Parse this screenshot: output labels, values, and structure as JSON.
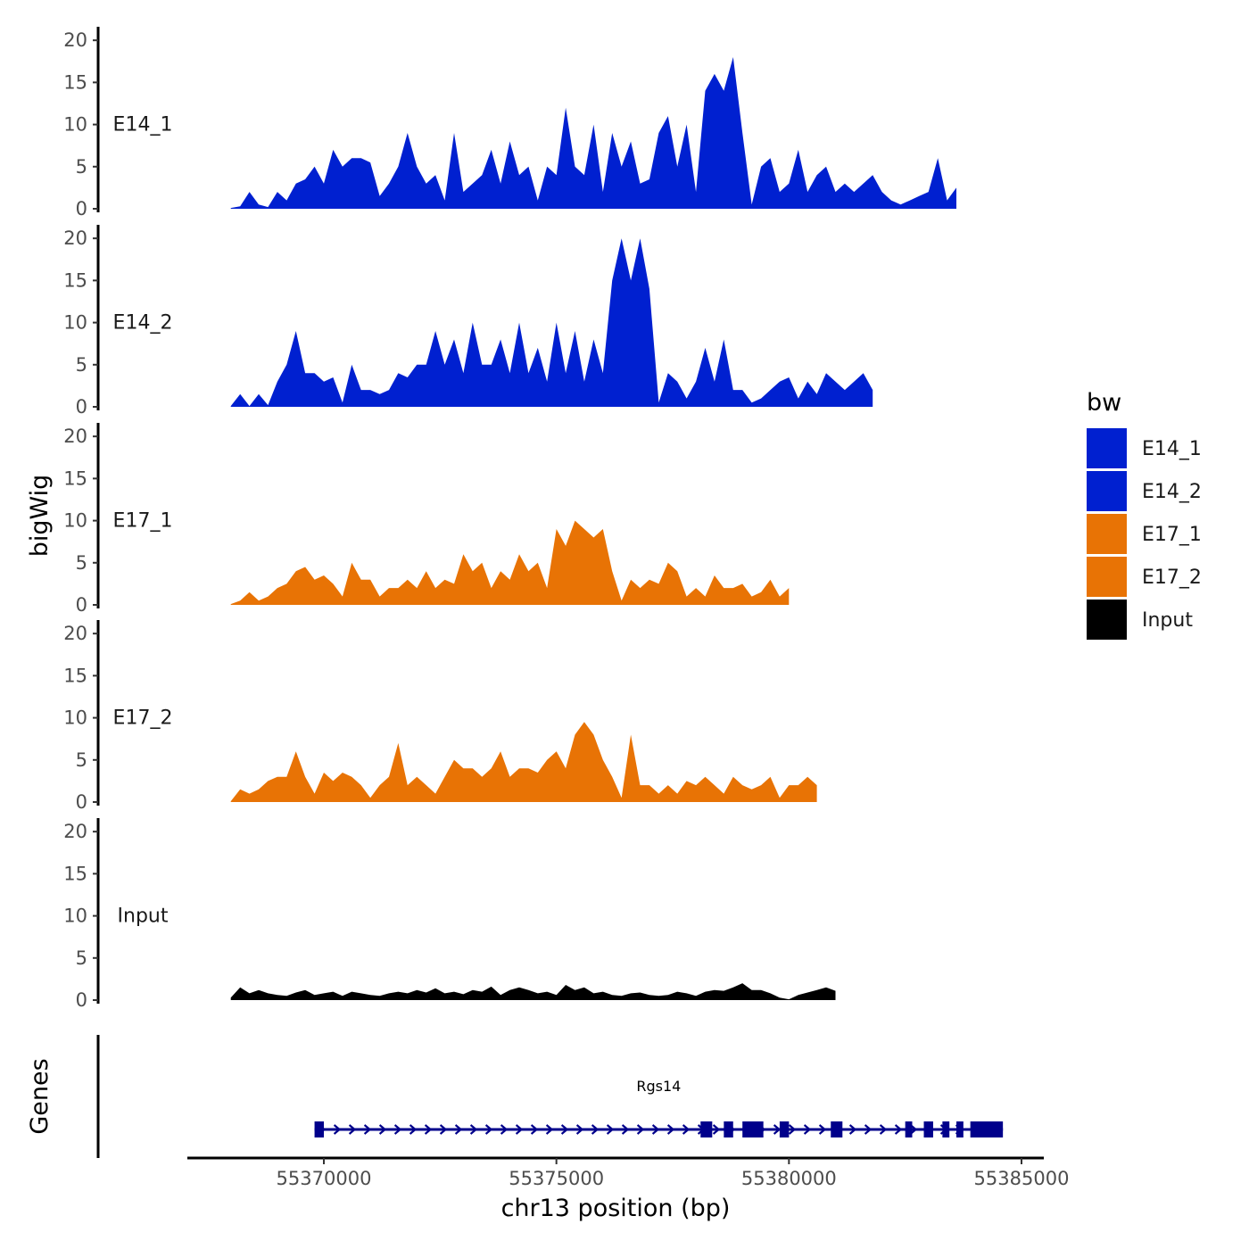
{
  "chart_data": {
    "type": "area",
    "ylabel": "bigWig",
    "genes_label": "Genes",
    "xlabel": "chr13 position (bp)",
    "x_ticks": [
      55370000,
      55375000,
      55380000,
      55385000
    ],
    "x_tick_labels": [
      "55370000",
      "55375000",
      "55380000",
      "55385000"
    ],
    "xlim": [
      55367400,
      55385000
    ],
    "ylim": [
      0,
      21.5
    ],
    "y_ticks": [
      0,
      5,
      10,
      15,
      20
    ],
    "y_tick_labels": [
      "0",
      "5",
      "10",
      "15",
      "20"
    ],
    "legend": {
      "title": "bw",
      "entries": [
        {
          "label": "E14_1",
          "color": "#0020D0"
        },
        {
          "label": "E14_2",
          "color": "#0020D0"
        },
        {
          "label": "E17_1",
          "color": "#E87305"
        },
        {
          "label": "E17_2",
          "color": "#E87305"
        },
        {
          "label": "Input",
          "color": "#000000"
        }
      ]
    },
    "series": [
      {
        "name": "E14_1",
        "color": "#0020D0",
        "x_start": 55368000,
        "x_step": 200,
        "values": [
          0.1,
          0.3,
          2,
          0.5,
          0.2,
          2,
          1,
          3,
          3.5,
          5,
          3,
          7,
          5,
          6,
          6,
          5.5,
          1.5,
          3,
          5,
          9,
          5,
          3,
          4,
          1,
          9,
          2,
          3,
          4,
          7,
          3,
          8,
          4,
          5,
          1,
          5,
          4,
          12,
          5,
          4,
          10,
          2,
          9,
          5,
          8,
          3,
          3.5,
          9,
          11,
          5,
          10,
          2,
          14,
          16,
          14,
          18,
          9,
          0.5,
          5,
          6,
          2,
          3,
          7,
          2,
          4,
          5,
          2,
          3,
          2,
          3,
          4,
          2,
          1,
          0.5,
          1,
          1.5,
          2,
          6,
          1,
          2.5
        ]
      },
      {
        "name": "E14_2",
        "color": "#0020D0",
        "x_start": 55368000,
        "x_step": 200,
        "values": [
          0.1,
          1.5,
          0.1,
          1.5,
          0.2,
          3,
          5,
          9,
          4,
          4,
          3,
          3.5,
          0.5,
          5,
          2,
          2,
          1.5,
          2,
          4,
          3.5,
          5,
          5,
          9,
          5,
          8,
          4,
          10,
          5,
          5,
          8,
          4,
          10,
          4,
          7,
          3,
          10,
          4,
          9,
          3,
          8,
          4,
          15,
          20,
          15,
          20,
          14,
          0.5,
          4,
          3,
          1,
          3,
          7,
          3,
          8,
          2,
          2,
          0.5,
          1,
          2,
          3,
          3.5,
          1,
          3,
          1.5,
          4,
          3,
          2,
          3,
          4,
          2
        ]
      },
      {
        "name": "E17_1",
        "color": "#E87305",
        "x_start": 55368000,
        "x_step": 200,
        "values": [
          0.1,
          0.5,
          1.5,
          0.5,
          1,
          2,
          2.5,
          4,
          4.5,
          3,
          3.5,
          2.5,
          1,
          5,
          3,
          3,
          1,
          2,
          2,
          3,
          2,
          4,
          2,
          3,
          2.5,
          6,
          4,
          5,
          2,
          4,
          3,
          6,
          4,
          5,
          2,
          9,
          7,
          10,
          9,
          8,
          9,
          4,
          0.5,
          3,
          2,
          3,
          2.5,
          5,
          4,
          1,
          2,
          1,
          3.5,
          2,
          2,
          2.5,
          1,
          1.5,
          3,
          1,
          2
        ]
      },
      {
        "name": "E17_2",
        "color": "#E87305",
        "x_start": 55368000,
        "x_step": 200,
        "values": [
          0.1,
          1.5,
          1,
          1.5,
          2.5,
          3,
          3,
          6,
          3,
          1,
          3.5,
          2.5,
          3.5,
          3,
          2,
          0.5,
          2,
          3,
          7,
          2,
          3,
          2,
          1,
          3,
          5,
          4,
          4,
          3,
          4,
          6,
          3,
          4,
          4,
          3.5,
          5,
          6,
          4,
          8,
          9.5,
          8,
          5,
          3,
          0.5,
          8,
          2,
          2,
          1,
          2,
          1,
          2.5,
          2,
          3,
          2,
          1,
          3,
          2,
          1.5,
          2,
          3,
          0.5,
          2,
          2,
          3,
          2
        ]
      },
      {
        "name": "Input",
        "color": "#000000",
        "x_start": 55368000,
        "x_step": 200,
        "values": [
          0.3,
          1.5,
          0.8,
          1.2,
          0.8,
          0.6,
          0.5,
          0.9,
          1.2,
          0.6,
          0.8,
          1,
          0.5,
          1,
          0.8,
          0.6,
          0.5,
          0.8,
          1,
          0.8,
          1.2,
          0.9,
          1.4,
          0.8,
          1,
          0.7,
          1.2,
          1,
          1.6,
          0.6,
          1.2,
          1.5,
          1.2,
          0.8,
          1,
          0.6,
          1.8,
          1.2,
          1.5,
          0.8,
          1,
          0.6,
          0.5,
          0.8,
          0.9,
          0.6,
          0.5,
          0.6,
          1,
          0.8,
          0.5,
          1,
          1.2,
          1.1,
          1.5,
          2,
          1.2,
          1.2,
          0.8,
          0.3,
          0.1,
          0.6,
          0.9,
          1.2,
          1.5,
          1.1
        ]
      }
    ],
    "gene": {
      "name": "Rgs14",
      "strand": "+",
      "start": 55369800,
      "end": 55384600,
      "color": "#00008B",
      "exons": [
        [
          55369800,
          55370000
        ],
        [
          55378100,
          55378350
        ],
        [
          55378600,
          55378800
        ],
        [
          55379000,
          55379450
        ],
        [
          55379800,
          55380000
        ],
        [
          55380900,
          55381150
        ],
        [
          55382500,
          55382650
        ],
        [
          55382900,
          55383100
        ],
        [
          55383300,
          55383450
        ],
        [
          55383600,
          55383750
        ],
        [
          55383900,
          55384600
        ]
      ]
    }
  }
}
